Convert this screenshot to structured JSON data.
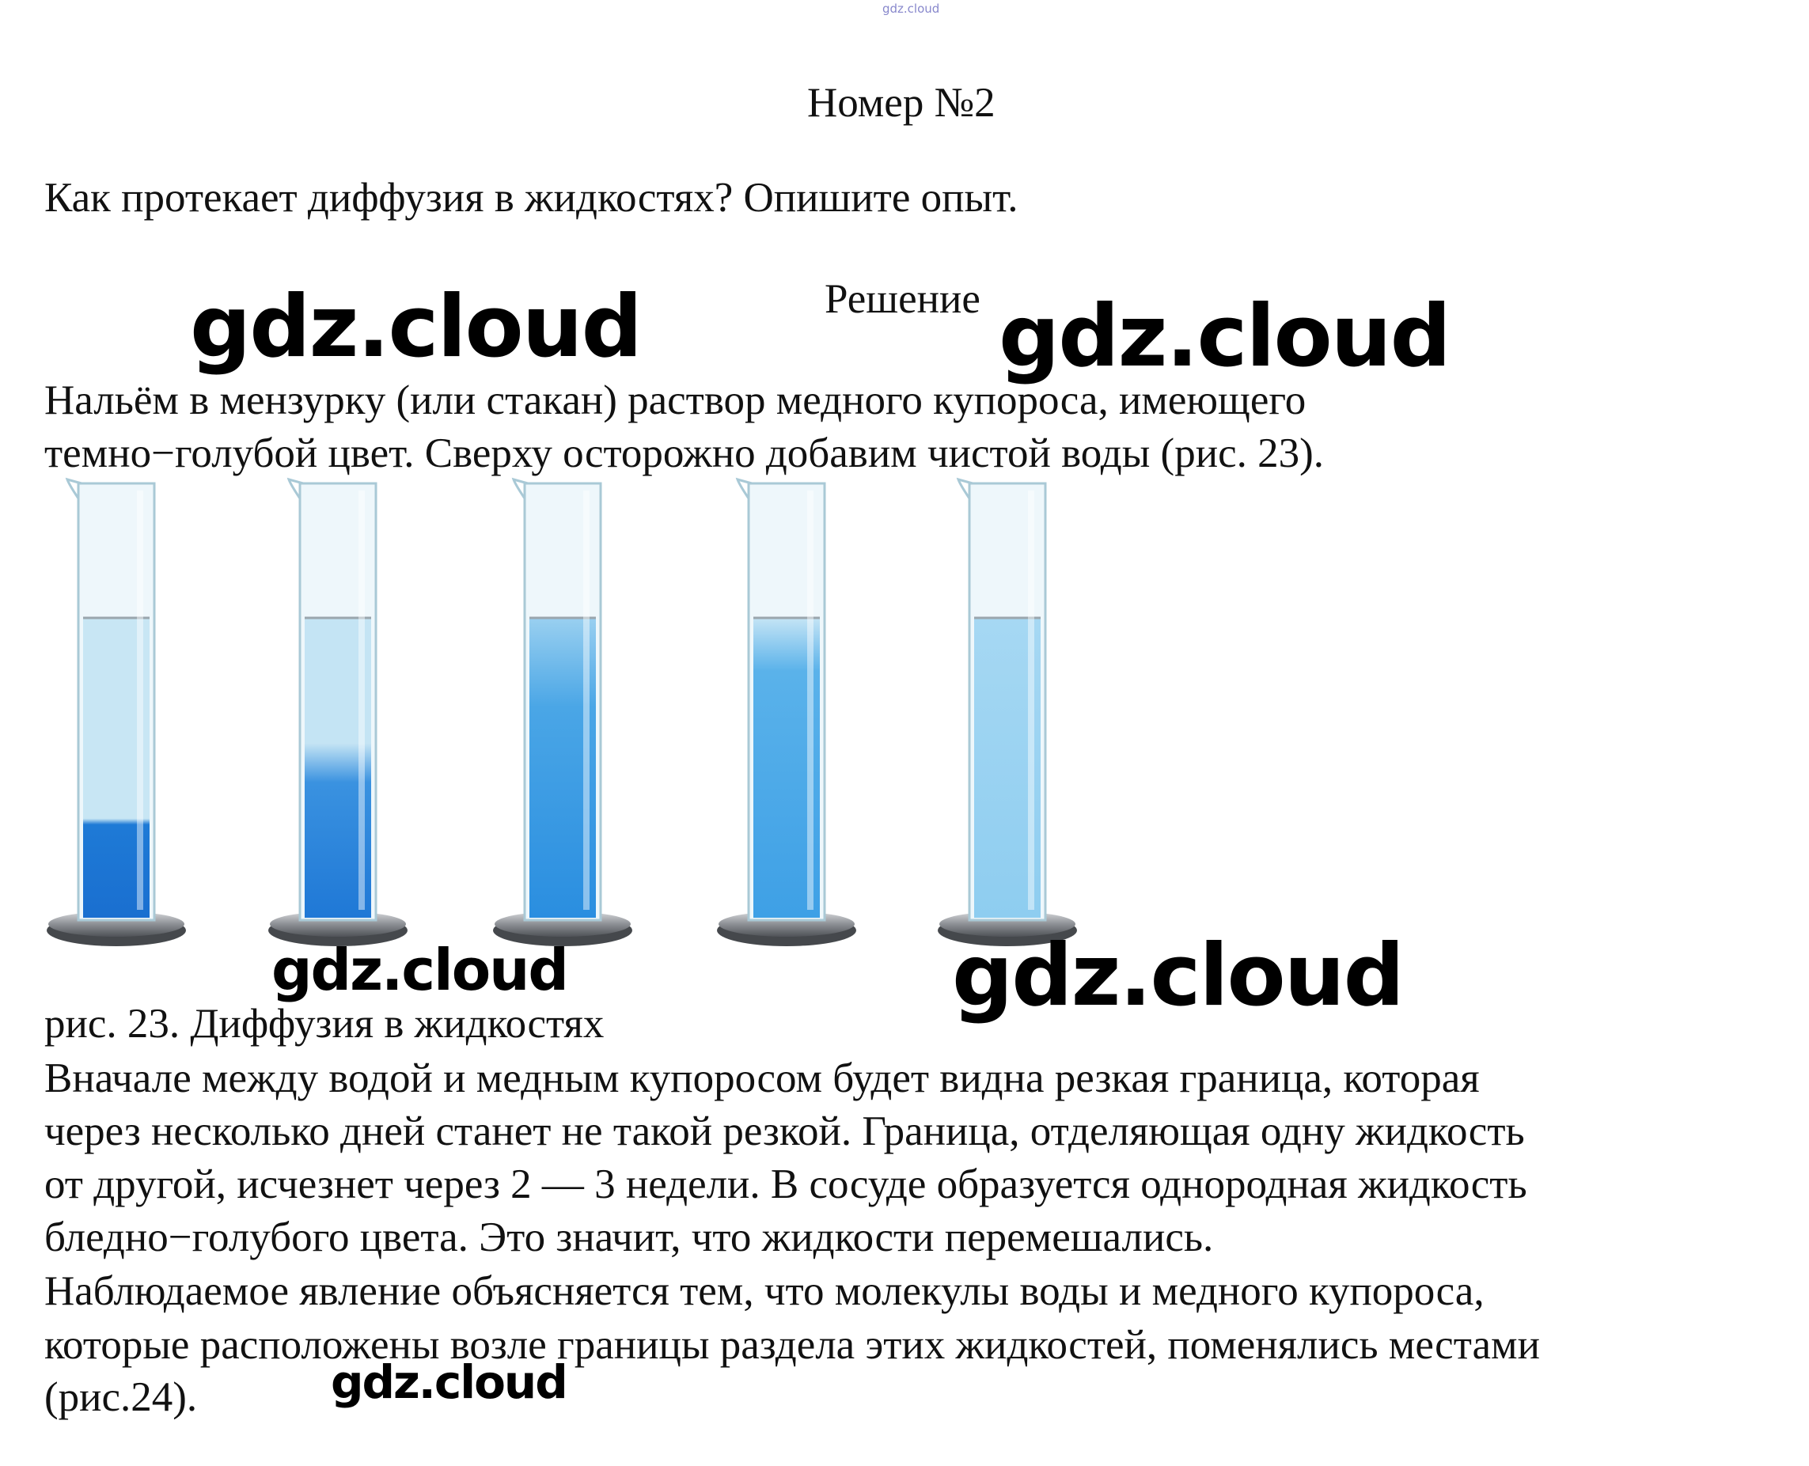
{
  "header": {
    "watermark": "gdz.cloud",
    "title": "Номер №2"
  },
  "question": "Как протекает диффузия в жидкостях? Опишите опыт.",
  "solution_label": "Решение",
  "paragraph_1": [
    "Нальём в мензурку (или стакан) раствор медного купороса, имеющего",
    "темно−голубой цвет. Сверху осторожно добавим чистой воды (рис. 23)."
  ],
  "figure": {
    "caption": "рис. 23. Диффузия в жидкостях"
  },
  "paragraph_2": [
    "Вначале между водой и медным купоросом будет видна резкая граница, которая",
    "через несколько дней станет не такой резкой. Граница, отделяющая одну жидкость",
    "от другой, исчезнет через 2 — 3 недели. В сосуде образуется однородная жидкость",
    "бледно−голубого цвета. Это значит, что жидкости перемешались.",
    "Наблюдаемое явление объясняется тем, что молекулы воды и медного купороса,",
    "которые расположены возле границы раздела этих жидкостей, поменялись местами",
    "(рис.24)."
  ],
  "watermarks": [
    "gdz.cloud",
    "gdz.cloud",
    "gdz.cloud",
    "gdz.cloud",
    "gdz.cloud"
  ]
}
